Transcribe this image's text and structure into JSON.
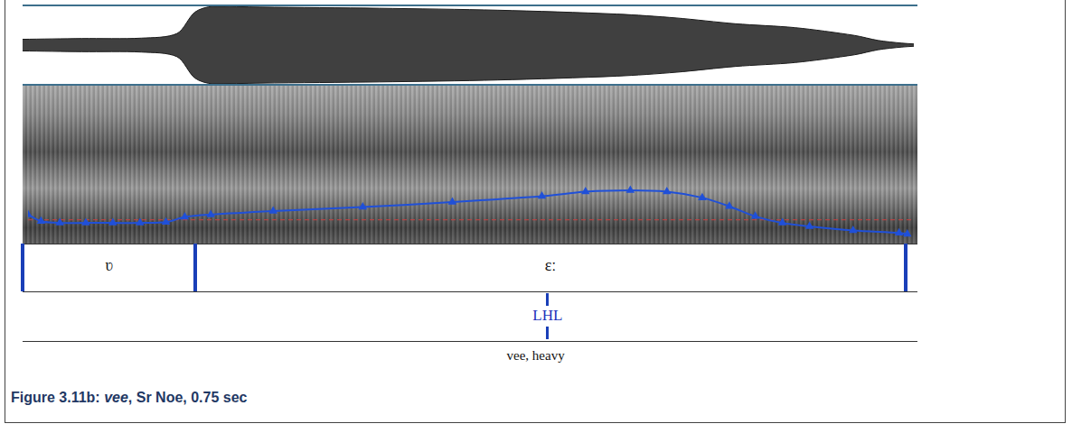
{
  "chart_data": [
    {
      "type": "area",
      "x": [
        0,
        0.05,
        0.1,
        0.13,
        0.145,
        0.16,
        0.2,
        0.3,
        0.4,
        0.5,
        0.55,
        0.6,
        0.65,
        0.7,
        0.72,
        0.74,
        0.75
      ],
      "upper": [
        0.15,
        0.17,
        0.18,
        0.3,
        0.85,
        1,
        0.98,
        0.95,
        0.9,
        0.8,
        0.7,
        0.55,
        0.45,
        0.25,
        0.12,
        0.05,
        0.03
      ],
      "lower": [
        -0.15,
        -0.17,
        -0.18,
        -0.3,
        -0.85,
        -1,
        -0.98,
        -0.95,
        -0.9,
        -0.8,
        -0.7,
        -0.55,
        -0.45,
        -0.25,
        -0.12,
        -0.05,
        -0.03
      ],
      "xlim": [
        0,
        0.75
      ],
      "ylim": [
        -1,
        1
      ],
      "color": "#1a1a1a",
      "tick_labels": false,
      "grid": false
    },
    {
      "type": "line",
      "x": [
        0,
        0.011,
        0.027,
        0.049,
        0.072,
        0.095,
        0.117,
        0.133,
        0.155,
        0.208,
        0.284,
        0.36,
        0.436,
        0.473,
        0.511,
        0.542,
        0.572,
        0.595,
        0.617,
        0.64,
        0.663,
        0.7,
        0.739,
        0.746
      ],
      "values": [
        143,
        124,
        119,
        119,
        119,
        119,
        121,
        136,
        143,
        153,
        165,
        179,
        196,
        209,
        213,
        209,
        192,
        167,
        138,
        119,
        109,
        97,
        90,
        87
      ],
      "color": "#2050d8",
      "marker": "triangle",
      "line_style": "solid",
      "xlim": [
        0,
        0.75
      ],
      "ylim": [
        75,
        500
      ],
      "tick_labels": false,
      "grid": false,
      "reference_line": {
        "value": 128,
        "color": "#c84040",
        "line_style": "dashed"
      }
    }
  ],
  "tiers": [
    {
      "intervals": [
        {
          "start": 0,
          "end": 0.145,
          "label": "ʋ"
        },
        {
          "start": 0.145,
          "end": 0.74,
          "label": "ɛː"
        }
      ]
    },
    {
      "points": [
        {
          "time": 0.44,
          "label": "LHL"
        }
      ]
    },
    {
      "texts": [
        {
          "time": 0.43,
          "label": "vee, heavy"
        }
      ]
    }
  ],
  "caption": {
    "label": "Figure 3.11b: ",
    "word": "vee",
    "rest": ", Sr Noe, 0.75 sec"
  }
}
